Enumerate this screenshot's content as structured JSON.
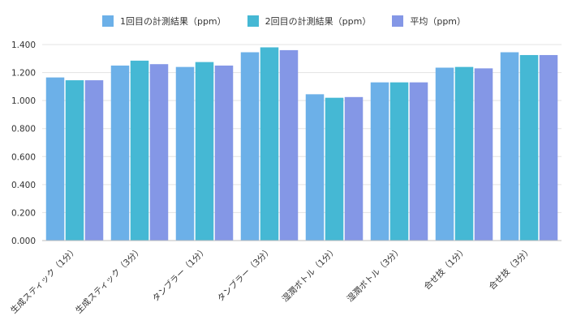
{
  "chart_data": {
    "type": "bar",
    "title": "",
    "xlabel": "",
    "ylabel": "",
    "ylim": [
      0,
      1.4
    ],
    "y_ticks": [
      "0.000",
      "0.200",
      "0.400",
      "0.600",
      "0.800",
      "1.000",
      "1.200",
      "1.400"
    ],
    "grid": true,
    "legend_position": "top-center",
    "categories": [
      "生成スティック（1分）",
      "生成スティック（3分）",
      "タンブラー（1分）",
      "タンブラー（3分）",
      "湿潤ボトル（1分）",
      "湿潤ボトル（3分）",
      "合せ技（1分）",
      "合せ技（3分）"
    ],
    "series": [
      {
        "name": "1回目の計測結果（ppm）",
        "color": "#6cb0e8",
        "values": [
          1.165,
          1.25,
          1.24,
          1.345,
          1.045,
          1.13,
          1.235,
          1.345
        ]
      },
      {
        "name": "2回目の計測結果（ppm）",
        "color": "#45b8d4",
        "values": [
          1.145,
          1.285,
          1.275,
          1.38,
          1.02,
          1.13,
          1.24,
          1.325
        ]
      },
      {
        "name": "平均（ppm）",
        "color": "#8497e6",
        "values": [
          1.145,
          1.26,
          1.25,
          1.36,
          1.025,
          1.13,
          1.23,
          1.325
        ]
      }
    ]
  }
}
